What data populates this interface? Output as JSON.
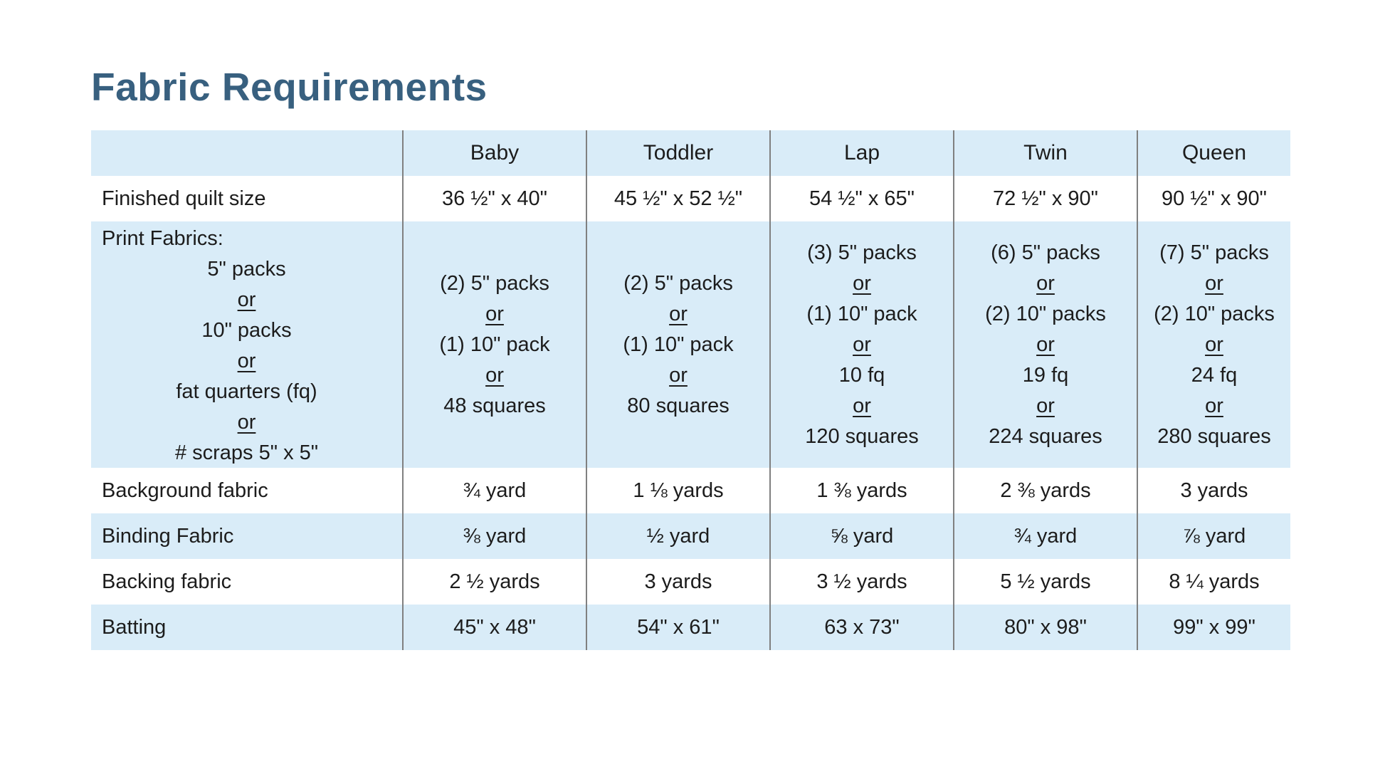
{
  "title": "Fabric Requirements",
  "colors": {
    "title": "#38607F",
    "band": "#D9ECF8",
    "grid_line": "#808080",
    "text": "#1c1c1c"
  },
  "table": {
    "header": [
      "",
      "Baby",
      "Toddler",
      "Lap",
      "Twin",
      "Queen"
    ],
    "rows": [
      {
        "type": "simple",
        "shaded": false,
        "label": "Finished quilt size",
        "values": [
          "36 ½\" x 40\"",
          "45 ½\" x 52 ½\"",
          "54 ½\" x 65\"",
          "72 ½\" x 90\"",
          "90 ½\" x 90\""
        ]
      },
      {
        "type": "options",
        "shaded": true,
        "label_title": "Print Fabrics:",
        "label_options": [
          "5\" packs",
          "10\" packs",
          "fat quarters (fq)",
          "# scraps 5\" x 5\""
        ],
        "separator": "or",
        "cells": [
          [
            "(2) 5\" packs",
            "(1) 10\" pack",
            "48 squares"
          ],
          [
            "(2) 5\" packs",
            "(1) 10\" pack",
            "80 squares"
          ],
          [
            "(3) 5\" packs",
            "(1) 10\" pack",
            "10 fq",
            "120 squares"
          ],
          [
            "(6) 5\" packs",
            "(2) 10\" packs",
            "19 fq",
            "224 squares"
          ],
          [
            "(7) 5\" packs",
            "(2) 10\" packs",
            "24 fq",
            "280 squares"
          ]
        ]
      },
      {
        "type": "simple",
        "shaded": false,
        "label": "Background fabric",
        "values": [
          "¾ yard",
          "1 ⅛ yards",
          "1 ⅜ yards",
          "2 ⅜ yards",
          "3 yards"
        ]
      },
      {
        "type": "simple",
        "shaded": true,
        "label": "Binding Fabric",
        "values": [
          "⅜ yard",
          "½ yard",
          "⅝ yard",
          "¾ yard",
          "⅞ yard"
        ]
      },
      {
        "type": "simple",
        "shaded": false,
        "label": "Backing fabric",
        "values": [
          "2 ½ yards",
          "3 yards",
          "3 ½ yards",
          "5 ½ yards",
          "8 ¼ yards"
        ]
      },
      {
        "type": "simple",
        "shaded": true,
        "label": "Batting",
        "values": [
          "45\" x 48\"",
          "54\" x 61\"",
          "63 x 73\"",
          "80\" x 98\"",
          "99\" x 99\""
        ]
      }
    ]
  }
}
